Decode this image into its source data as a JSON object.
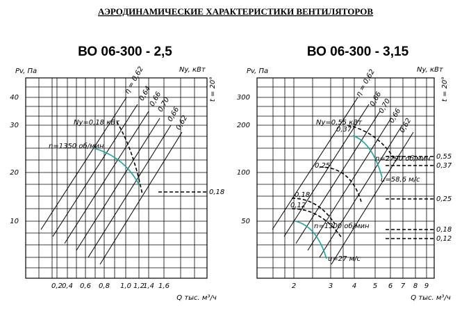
{
  "title": "АЭРОДИНАМИЧЕСКИЕ ХАРАКТЕРИСТИКИ ВЕНТИЛЯТОРОВ",
  "panels": [
    {
      "title": "ВО 06-300 - 2,5",
      "y_label": "Pv, Па",
      "y2_label": "Ny, кВт",
      "temp_label": "t = 20°",
      "x_label": "Q тыс. м³/ч",
      "y_ticks": [
        "40",
        "30",
        "20",
        "10"
      ],
      "x_ticks": [
        "0,2",
        "0,4",
        "0,6",
        "0,8",
        "1,0",
        "1,2",
        "1,4",
        "1,6"
      ],
      "y2_ticks": [
        "0,18"
      ],
      "annotations": [
        "Ny=0,18 кВт",
        "n=1350 об/мин",
        "η = 0,62",
        "0,64",
        "0,66",
        "0,70",
        "0,66",
        "0,62"
      ]
    },
    {
      "title": "ВО 06-300 - 3,15",
      "y_label": "Pv, Па",
      "y2_label": "Ny, кВт",
      "temp_label": "t = 20°",
      "x_label": "Q тыс. м³/ч",
      "y_ticks": [
        "300",
        "200",
        "100",
        "50"
      ],
      "x_ticks": [
        "2",
        "3",
        "4",
        "5",
        "6",
        "7",
        "8",
        "9"
      ],
      "y2_ticks": [
        "0,55",
        "0,37",
        "0,25",
        "0,18",
        "0,12"
      ],
      "annotations": [
        "Ny=0,55 кВт",
        "0,37",
        "0,25",
        "0,18",
        "0,12",
        "n=2790 об/мин",
        "u=58,6 м/с",
        "n=1300 об/мин",
        "u=27 м/с",
        "η = 0,62",
        "0,66",
        "0,70",
        "0,66",
        "0,62"
      ]
    }
  ]
}
